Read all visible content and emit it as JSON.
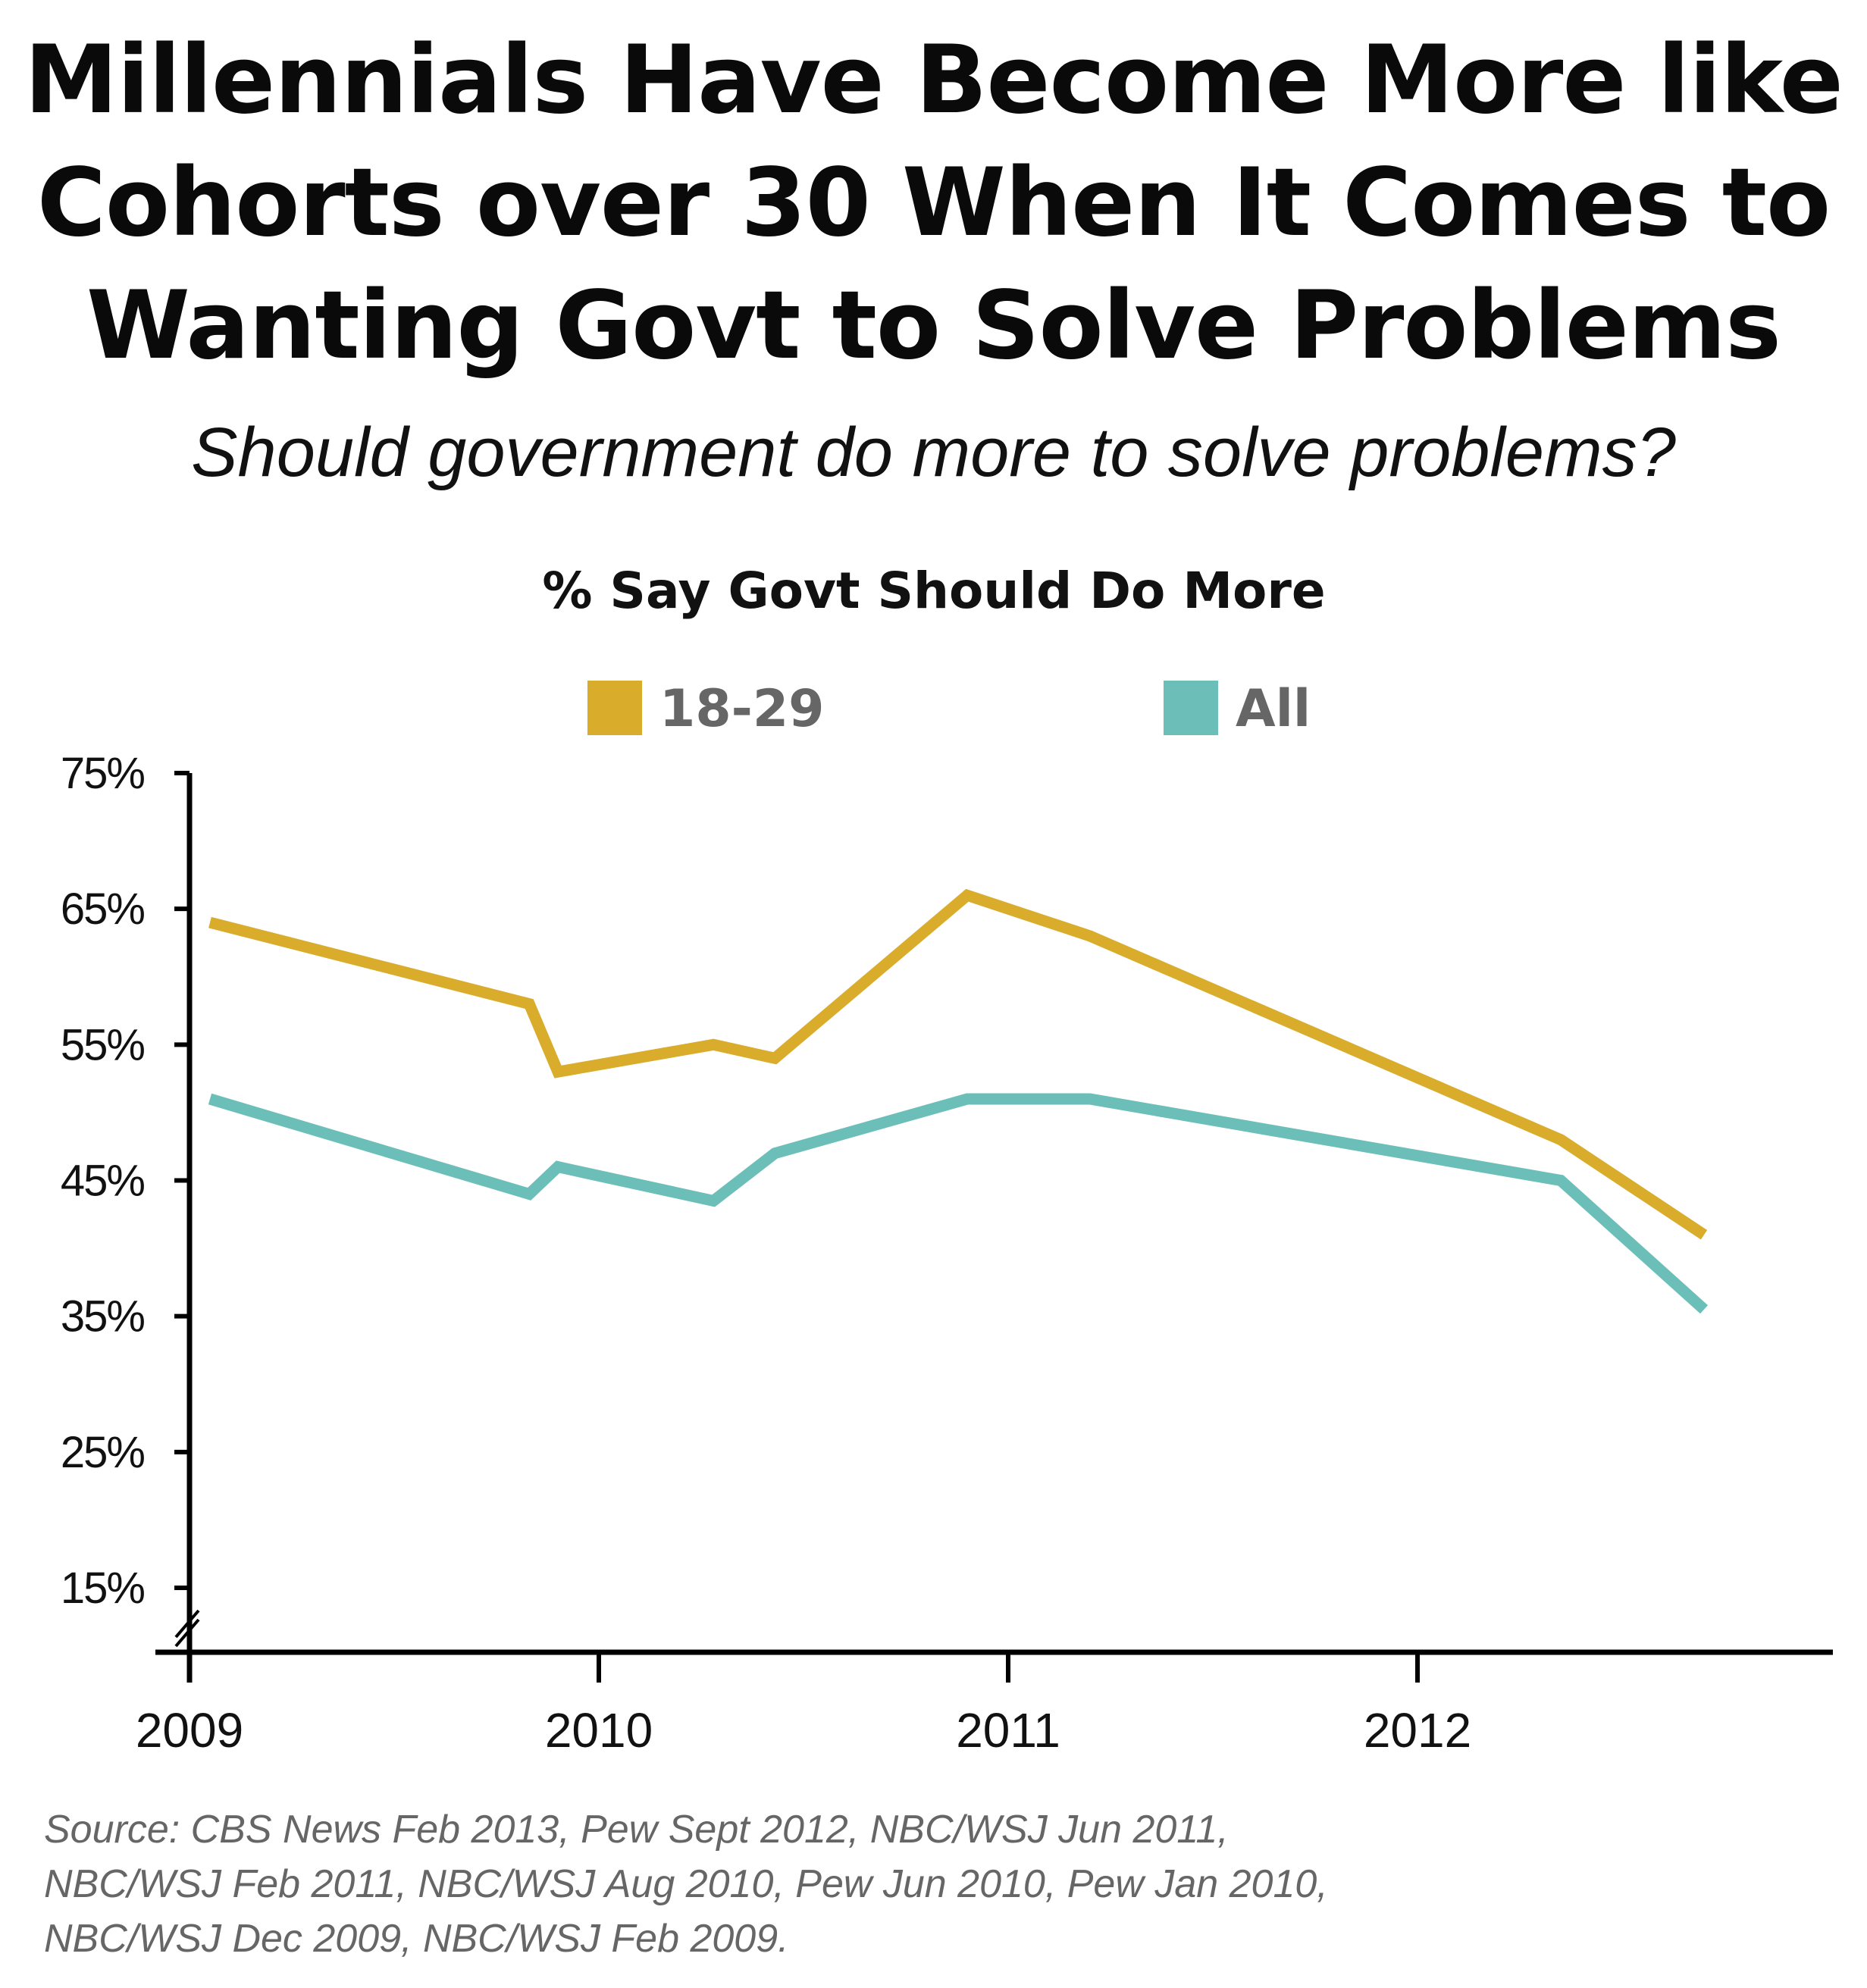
{
  "title_lines": [
    "Millennials Have Become More like",
    "Cohorts over 30 When It Comes to",
    "Wanting Govt to Solve Problems"
  ],
  "subtitle": "Should government do more to solve problems?",
  "source_lines": [
    "Source: CBS News Feb 2013, Pew Sept 2012, NBC/WSJ Jun 2011,",
    "NBC/WSJ Feb 2011, NBC/WSJ Aug 2010, Pew Jun 2010, Pew Jan 2010,",
    "NBC/WSJ Dec 2009, NBC/WSJ Feb 2009."
  ],
  "chart_data": {
    "type": "line",
    "title": "% Say Govt Should Do More",
    "xlabel": "",
    "ylabel": "",
    "xlim": [
      2009,
      2013
    ],
    "ylim": [
      15,
      75
    ],
    "y_ticks": [
      15,
      25,
      35,
      45,
      55,
      65,
      75
    ],
    "y_tick_labels": [
      "15%",
      "25%",
      "35%",
      "45%",
      "55%",
      "65%",
      "75%"
    ],
    "x_ticks": [
      2009,
      2010,
      2011,
      2012
    ],
    "x_tick_labels": [
      "2009",
      "2010",
      "2011",
      "2012"
    ],
    "grid": false,
    "legend_position": "top-center",
    "axis_break": true,
    "series": [
      {
        "name": "18-29",
        "color": "#D9AC2B",
        "points": [
          {
            "x": 2009.05,
            "y": 64
          },
          {
            "x": 2009.83,
            "y": 58
          },
          {
            "x": 2009.9,
            "y": 53
          },
          {
            "x": 2010.28,
            "y": 55
          },
          {
            "x": 2010.43,
            "y": 54
          },
          {
            "x": 2010.9,
            "y": 66
          },
          {
            "x": 2011.2,
            "y": 63
          },
          {
            "x": 2012.35,
            "y": 48
          },
          {
            "x": 2012.7,
            "y": 41
          }
        ]
      },
      {
        "name": "All",
        "color": "#6BBFB8",
        "points": [
          {
            "x": 2009.05,
            "y": 51
          },
          {
            "x": 2009.83,
            "y": 44
          },
          {
            "x": 2009.9,
            "y": 46
          },
          {
            "x": 2010.28,
            "y": 43.5
          },
          {
            "x": 2010.43,
            "y": 47
          },
          {
            "x": 2010.9,
            "y": 51
          },
          {
            "x": 2011.2,
            "y": 51
          },
          {
            "x": 2012.35,
            "y": 45
          },
          {
            "x": 2012.7,
            "y": 35.5
          }
        ]
      }
    ]
  }
}
